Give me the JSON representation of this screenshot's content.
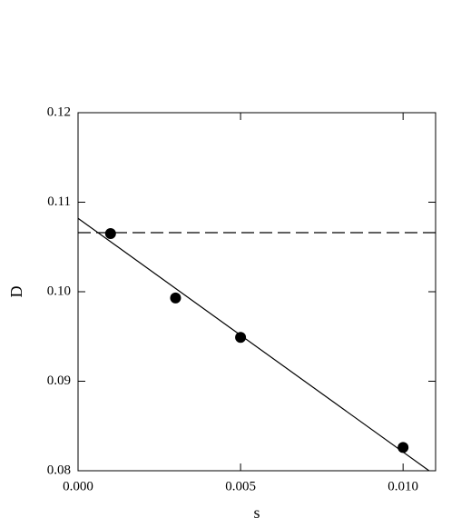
{
  "chart_data": {
    "type": "scatter",
    "xlabel": "s",
    "ylabel": "D",
    "xlim": [
      0,
      0.011
    ],
    "ylim": [
      0.08,
      0.12
    ],
    "xticks": [
      {
        "value": 0,
        "label": "0.000"
      },
      {
        "value": 0.005,
        "label": "0.005"
      },
      {
        "value": 0.01,
        "label": "0.010"
      }
    ],
    "yticks": [
      0.08,
      0.09,
      {
        "value": 0.1,
        "label": "0.10"
      },
      0.11,
      0.12
    ],
    "series": [
      {
        "color": "#000000",
        "marker": "circle",
        "x": [
          0.001,
          0.003,
          0.005,
          0.01
        ],
        "values": [
          0.1065,
          0.0993,
          0.0949,
          0.0826
        ]
      },
      {
        "color": "#000000",
        "style": "solid",
        "x": [
          0,
          0.0108
        ],
        "values": [
          0.1082,
          0.08
        ]
      },
      {
        "color": "#000000",
        "style": "dashed",
        "x": [
          0,
          0.011
        ],
        "values": [
          0.1066,
          0.1066
        ]
      }
    ]
  }
}
